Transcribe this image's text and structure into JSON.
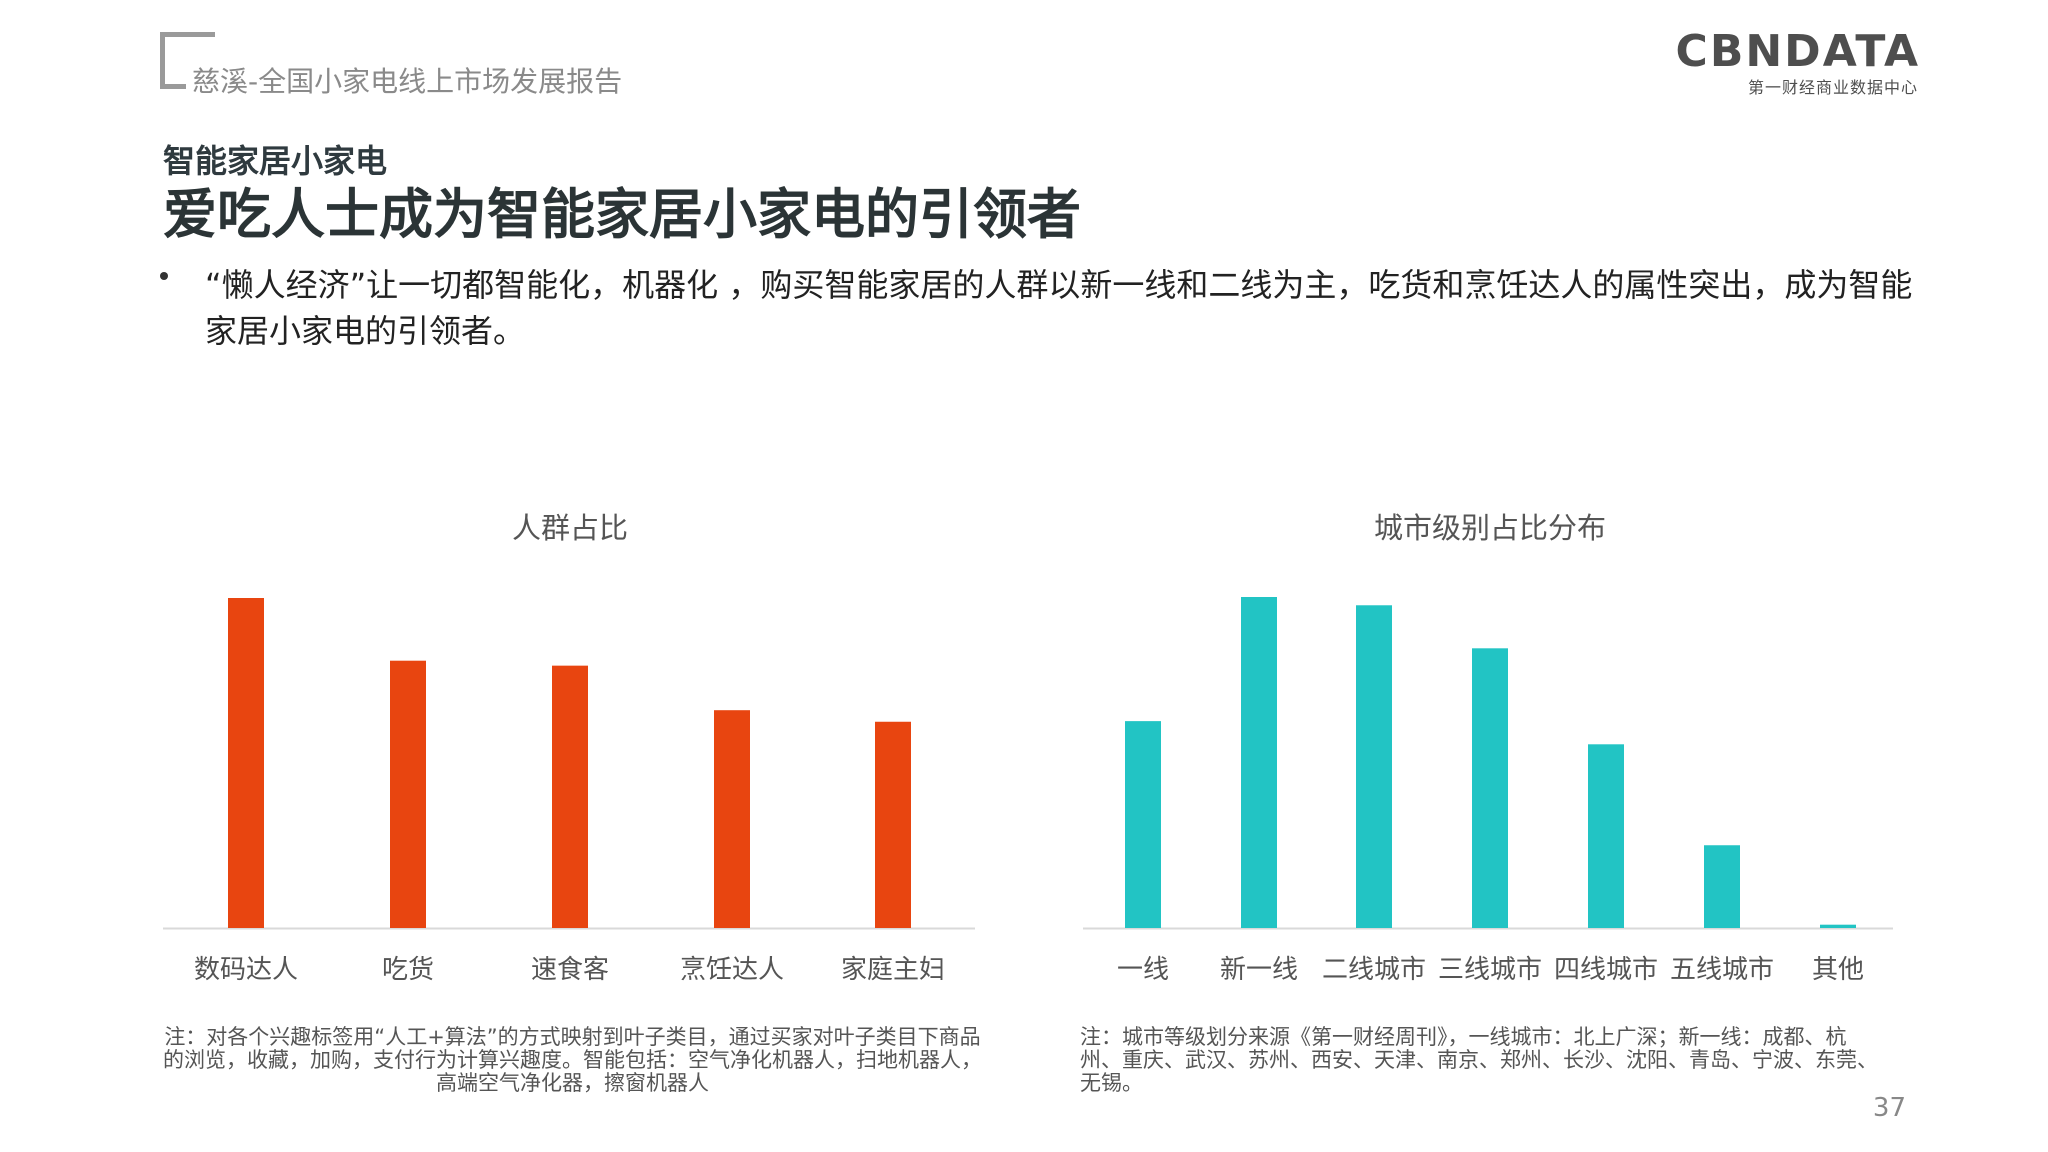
{
  "header": {
    "report_title": "慈溪-全国小家电线上市场发展报告",
    "logo_main": "CBNDATA",
    "logo_sub": "第一财经商业数据中心"
  },
  "section_label": "智能家居小家电",
  "main_title": "爱吃人士成为智能家居小家电的引领者",
  "bullet": "“懒人经济”让一切都智能化，机器化 ，购买智能家居的人群以新一线和二线为主，吃货和烹饪达人的属性突出，成为智能家居小家电的引领者。",
  "chart_data": [
    {
      "type": "bar",
      "title": "人群占比",
      "categories": [
        "数码达人",
        "吃货",
        "速食客",
        "烹饪达人",
        "家庭主妇"
      ],
      "values": [
        100,
        81,
        79.5,
        66,
        62.5
      ],
      "ylim": [
        0,
        100
      ],
      "color": "#E84510",
      "grid": false,
      "legend": "none"
    },
    {
      "type": "bar",
      "title": "城市级别占比分布",
      "categories": [
        "一线",
        "新一线",
        "二线城市",
        "三线城市",
        "四线城市",
        "五线城市",
        "其他"
      ],
      "values": [
        62.5,
        100,
        97.5,
        84.5,
        55.5,
        25,
        1
      ],
      "ylim": [
        0,
        100
      ],
      "color": "#22C4C4",
      "grid": false,
      "legend": "none"
    }
  ],
  "notes": {
    "left": "注：对各个兴趣标签用“人工+算法”的方式映射到叶子类目，通过买家对叶子类目下商品的浏览，收藏，加购，支付行为计算兴趣度。智能包括：空气净化机器人，扫地机器人，高端空气净化器，擦窗机器人",
    "right": "注：城市等级划分来源《第一财经周刊》，一线城市：北上广深；新一线：成都、杭州、重庆、武汉、苏州、西安、天津、南京、郑州、长沙、沈阳、青岛、宁波、东莞、无锡。"
  },
  "page_number": "37"
}
